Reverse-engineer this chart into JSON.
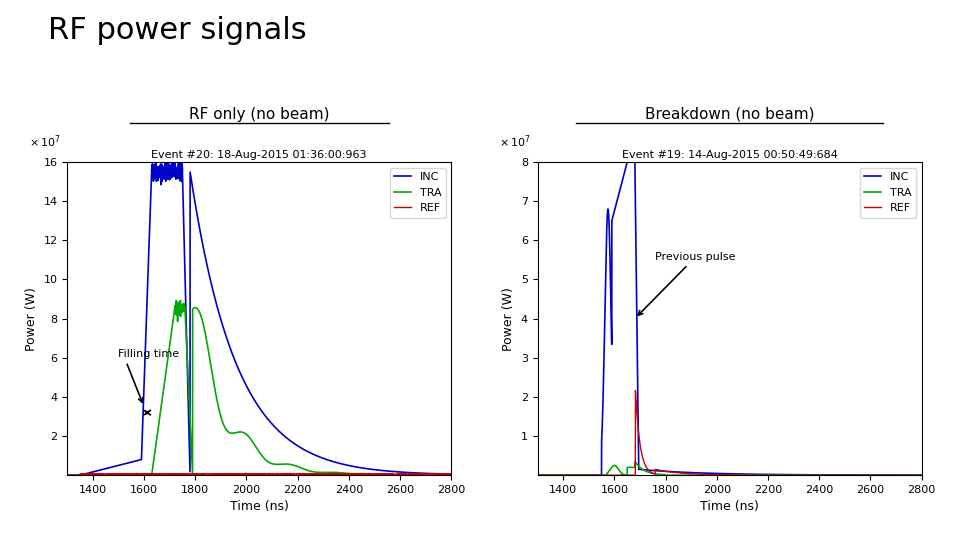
{
  "title": "RF power signals",
  "left_subtitle": "RF only (no beam)",
  "right_subtitle": "Breakdown (no beam)",
  "left_event": "Event #20: 18-Aug-2015 01:36:00:963",
  "right_event": "Event #19: 14-Aug-2015 00:50:49:684",
  "xlabel": "Time (ns)",
  "ylabel": "Power (W)",
  "left_ylim": [
    0,
    16
  ],
  "right_ylim": [
    0,
    8
  ],
  "xlim": [
    1300,
    2800
  ],
  "xticks": [
    1400,
    1600,
    1800,
    2000,
    2200,
    2400,
    2600,
    2800
  ],
  "left_yticks": [
    2,
    4,
    6,
    8,
    10,
    12,
    14,
    16
  ],
  "right_yticks": [
    1,
    2,
    3,
    4,
    5,
    6,
    7,
    8
  ],
  "inc_color": "#0000CC",
  "tra_color": "#00AA00",
  "ref_color": "#CC0000",
  "filling_time_label": "Filling time",
  "previous_pulse_label": "Previous pulse",
  "background_color": "#ffffff"
}
